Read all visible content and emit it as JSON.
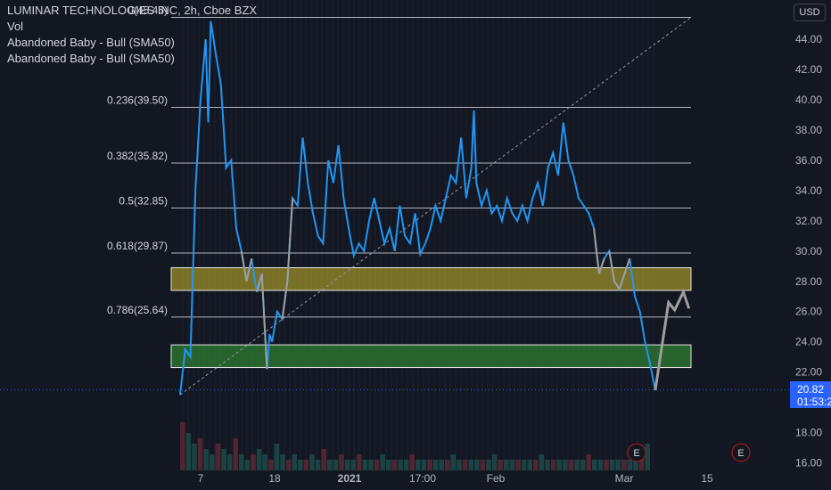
{
  "header": {
    "title": "LUMINAR TECHNOLOGIES INC, 2h, Cboe BZX",
    "indicators": [
      "Vol",
      "Abandoned Baby - Bull (SMA50)",
      "Abandoned Baby - Bull (SMA50)"
    ]
  },
  "currency_button": "USD",
  "last_price": {
    "value": "20.82",
    "countdown": "01:53:2"
  },
  "colors": {
    "background": "#131722",
    "price_line": "#2196f3",
    "resistance_zone": "#9c8f2a",
    "support_zone": "#2e7d32",
    "projection": "#9e9e9e",
    "last_price_tag": "#2962ff"
  },
  "chart_data": {
    "type": "line",
    "y_axis": {
      "min": 15.5,
      "max": 46.6,
      "ticks": [
        "16.00",
        "18.00",
        "20.00",
        "22.00",
        "24.00",
        "26.00",
        "28.00",
        "30.00",
        "32.00",
        "34.00",
        "36.00",
        "38.00",
        "40.00",
        "42.00",
        "44.00"
      ]
    },
    "x_axis": {
      "ticks": [
        "7",
        "18",
        "2021",
        "17:00",
        "Feb",
        "Mar",
        "15"
      ]
    },
    "fib_levels": [
      {
        "label": "0(45.45)",
        "value": 45.45
      },
      {
        "label": "0.236(39.50)",
        "value": 39.5
      },
      {
        "label": "0.382(35.82)",
        "value": 35.82
      },
      {
        "label": "0.5(32.85)",
        "value": 32.85
      },
      {
        "label": "0.618(29.87)",
        "value": 29.87
      },
      {
        "label": "0.786(25.64)",
        "value": 25.64
      }
    ],
    "zones": [
      {
        "name": "resistance",
        "from": 27.4,
        "to": 28.9
      },
      {
        "name": "support",
        "from": 22.3,
        "to": 23.8
      }
    ],
    "price_series": [
      [
        0.0,
        20.5
      ],
      [
        0.01,
        23.5
      ],
      [
        0.02,
        23.0
      ],
      [
        0.03,
        34.0
      ],
      [
        0.04,
        40.0
      ],
      [
        0.05,
        44.0
      ],
      [
        0.055,
        38.5
      ],
      [
        0.06,
        45.2
      ],
      [
        0.07,
        43.0
      ],
      [
        0.08,
        41.0
      ],
      [
        0.09,
        35.5
      ],
      [
        0.1,
        36.0
      ],
      [
        0.11,
        31.5
      ],
      [
        0.12,
        30.0
      ],
      [
        0.13,
        28.0
      ],
      [
        0.14,
        29.5
      ],
      [
        0.15,
        27.3
      ],
      [
        0.16,
        28.5
      ],
      [
        0.17,
        22.2
      ],
      [
        0.175,
        24.5
      ],
      [
        0.18,
        24.0
      ],
      [
        0.19,
        26.0
      ],
      [
        0.2,
        25.5
      ],
      [
        0.21,
        28.0
      ],
      [
        0.22,
        33.5
      ],
      [
        0.23,
        33.0
      ],
      [
        0.24,
        37.5
      ],
      [
        0.25,
        34.5
      ],
      [
        0.26,
        32.5
      ],
      [
        0.27,
        31.0
      ],
      [
        0.28,
        30.5
      ],
      [
        0.29,
        36.0
      ],
      [
        0.3,
        34.5
      ],
      [
        0.31,
        37.0
      ],
      [
        0.32,
        33.5
      ],
      [
        0.33,
        31.5
      ],
      [
        0.34,
        29.7
      ],
      [
        0.35,
        30.5
      ],
      [
        0.36,
        30.0
      ],
      [
        0.37,
        32.0
      ],
      [
        0.38,
        33.5
      ],
      [
        0.39,
        32.0
      ],
      [
        0.4,
        30.5
      ],
      [
        0.41,
        31.5
      ],
      [
        0.42,
        30.0
      ],
      [
        0.43,
        33.0
      ],
      [
        0.44,
        31.0
      ],
      [
        0.45,
        30.5
      ],
      [
        0.46,
        32.5
      ],
      [
        0.47,
        29.8
      ],
      [
        0.48,
        30.5
      ],
      [
        0.49,
        31.5
      ],
      [
        0.5,
        33.0
      ],
      [
        0.51,
        32.0
      ],
      [
        0.52,
        33.5
      ],
      [
        0.53,
        35.0
      ],
      [
        0.54,
        34.5
      ],
      [
        0.55,
        37.5
      ],
      [
        0.56,
        33.5
      ],
      [
        0.57,
        35.5
      ],
      [
        0.575,
        39.3
      ],
      [
        0.58,
        34.5
      ],
      [
        0.59,
        33.0
      ],
      [
        0.6,
        34.0
      ],
      [
        0.61,
        32.5
      ],
      [
        0.62,
        33.0
      ],
      [
        0.63,
        32.0
      ],
      [
        0.64,
        33.5
      ],
      [
        0.65,
        32.5
      ],
      [
        0.66,
        32.0
      ],
      [
        0.67,
        33.0
      ],
      [
        0.68,
        32.0
      ],
      [
        0.69,
        33.5
      ],
      [
        0.7,
        34.5
      ],
      [
        0.71,
        33.0
      ],
      [
        0.72,
        35.5
      ],
      [
        0.73,
        36.5
      ],
      [
        0.74,
        35.0
      ],
      [
        0.75,
        38.5
      ],
      [
        0.76,
        36.0
      ],
      [
        0.77,
        35.0
      ],
      [
        0.78,
        33.5
      ],
      [
        0.79,
        33.0
      ],
      [
        0.8,
        32.5
      ],
      [
        0.81,
        31.5
      ],
      [
        0.82,
        28.5
      ],
      [
        0.83,
        29.5
      ],
      [
        0.84,
        30.0
      ],
      [
        0.85,
        28.0
      ],
      [
        0.86,
        27.5
      ],
      [
        0.87,
        28.5
      ],
      [
        0.88,
        29.5
      ],
      [
        0.89,
        27.0
      ],
      [
        0.9,
        26.0
      ],
      [
        0.91,
        24.0
      ],
      [
        0.92,
        22.5
      ],
      [
        0.93,
        20.8
      ]
    ],
    "projection_path": [
      [
        0.93,
        20.8
      ],
      [
        0.956,
        26.6
      ],
      [
        0.968,
        26.1
      ],
      [
        0.985,
        27.3
      ],
      [
        0.996,
        26.2
      ]
    ],
    "volume": [
      0.9,
      0.7,
      0.5,
      0.6,
      0.4,
      0.3,
      0.5,
      0.4,
      0.3,
      0.6,
      0.3,
      0.2,
      0.3,
      0.4,
      0.3,
      0.2,
      0.5,
      0.3,
      0.2,
      0.3,
      0.2,
      0.2,
      0.3,
      0.2,
      0.4,
      0.2,
      0.2,
      0.3,
      0.2,
      0.2,
      0.3,
      0.2,
      0.2,
      0.2,
      0.3,
      0.2,
      0.2,
      0.2,
      0.2,
      0.3,
      0.2,
      0.2,
      0.2,
      0.2,
      0.2,
      0.2,
      0.3,
      0.2,
      0.2,
      0.2,
      0.2,
      0.2,
      0.2,
      0.3,
      0.2,
      0.2,
      0.2,
      0.2,
      0.2,
      0.2,
      0.2,
      0.3,
      0.2,
      0.2,
      0.2,
      0.2,
      0.2,
      0.2,
      0.2,
      0.3,
      0.2,
      0.2,
      0.2,
      0.2,
      0.2,
      0.2,
      0.2,
      0.3,
      0.4,
      0.5
    ],
    "earnings_markers": [
      "E",
      "E"
    ],
    "grid": true
  }
}
